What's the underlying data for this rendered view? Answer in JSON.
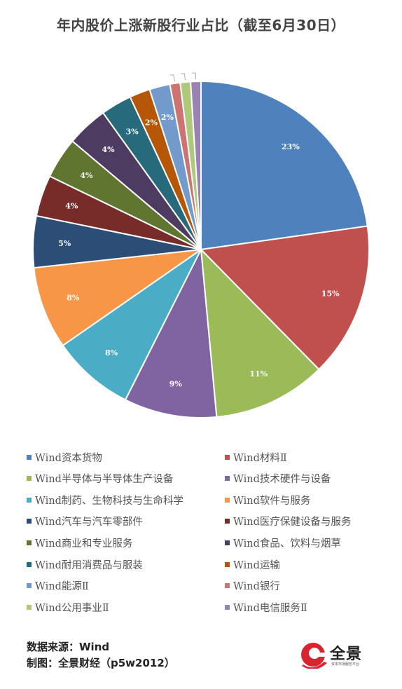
{
  "header": {
    "title": "年内股价上涨新股行业占比（截至6月30日）"
  },
  "chart_data": {
    "type": "pie",
    "title": "年内股价上涨新股行业占比（截至6月30日）",
    "slices": [
      {
        "label": "Wind资本货物",
        "value": 23,
        "display": "23%",
        "color": "#4f81bd"
      },
      {
        "label": "Wind材料Ⅱ",
        "value": 15,
        "display": "15%",
        "color": "#c0504d"
      },
      {
        "label": "Wind半导体与半导体生产设备",
        "value": 11,
        "display": "11%",
        "color": "#9bbb59"
      },
      {
        "label": "Wind技术硬件与设备",
        "value": 9,
        "display": "9%",
        "color": "#8064a2"
      },
      {
        "label": "Wind制药、生物科技与生命科学",
        "value": 8,
        "display": "8%",
        "color": "#4bacc6"
      },
      {
        "label": "Wind软件与服务",
        "value": 8,
        "display": "8%",
        "color": "#f79646"
      },
      {
        "label": "Wind汽车与汽车零部件",
        "value": 5,
        "display": "5%",
        "color": "#2c4d75"
      },
      {
        "label": "Wind医疗保健设备与服务",
        "value": 4,
        "display": "4%",
        "color": "#772c2a"
      },
      {
        "label": "Wind商业和专业服务",
        "value": 4,
        "display": "4%",
        "color": "#5f7530"
      },
      {
        "label": "Wind食品、饮料与烟草",
        "value": 4,
        "display": "4%",
        "color": "#4d3b62"
      },
      {
        "label": "Wind耐用消费品与服装",
        "value": 3,
        "display": "3%",
        "color": "#276a7c"
      },
      {
        "label": "Wind运输",
        "value": 2,
        "display": "2%",
        "color": "#b65708"
      },
      {
        "label": "Wind能源Ⅱ",
        "value": 2,
        "display": "2%",
        "color": "#729aca"
      },
      {
        "label": "Wind银行",
        "value": 1,
        "display": "",
        "color": "#cd7371"
      },
      {
        "label": "Wind公用事业Ⅱ",
        "value": 1,
        "display": "",
        "color": "#afc97a"
      },
      {
        "label": "Wind电信服务Ⅱ",
        "value": 1,
        "display": "",
        "color": "#9983b5"
      }
    ],
    "legend": "bottom"
  },
  "footer": {
    "source": "数据来源：Wind",
    "maker": "制图：全景财经（p5w2012）"
  },
  "logo": {
    "name": "全景",
    "subtitle": "资本市场服务平台",
    "color": "#d9232e"
  }
}
